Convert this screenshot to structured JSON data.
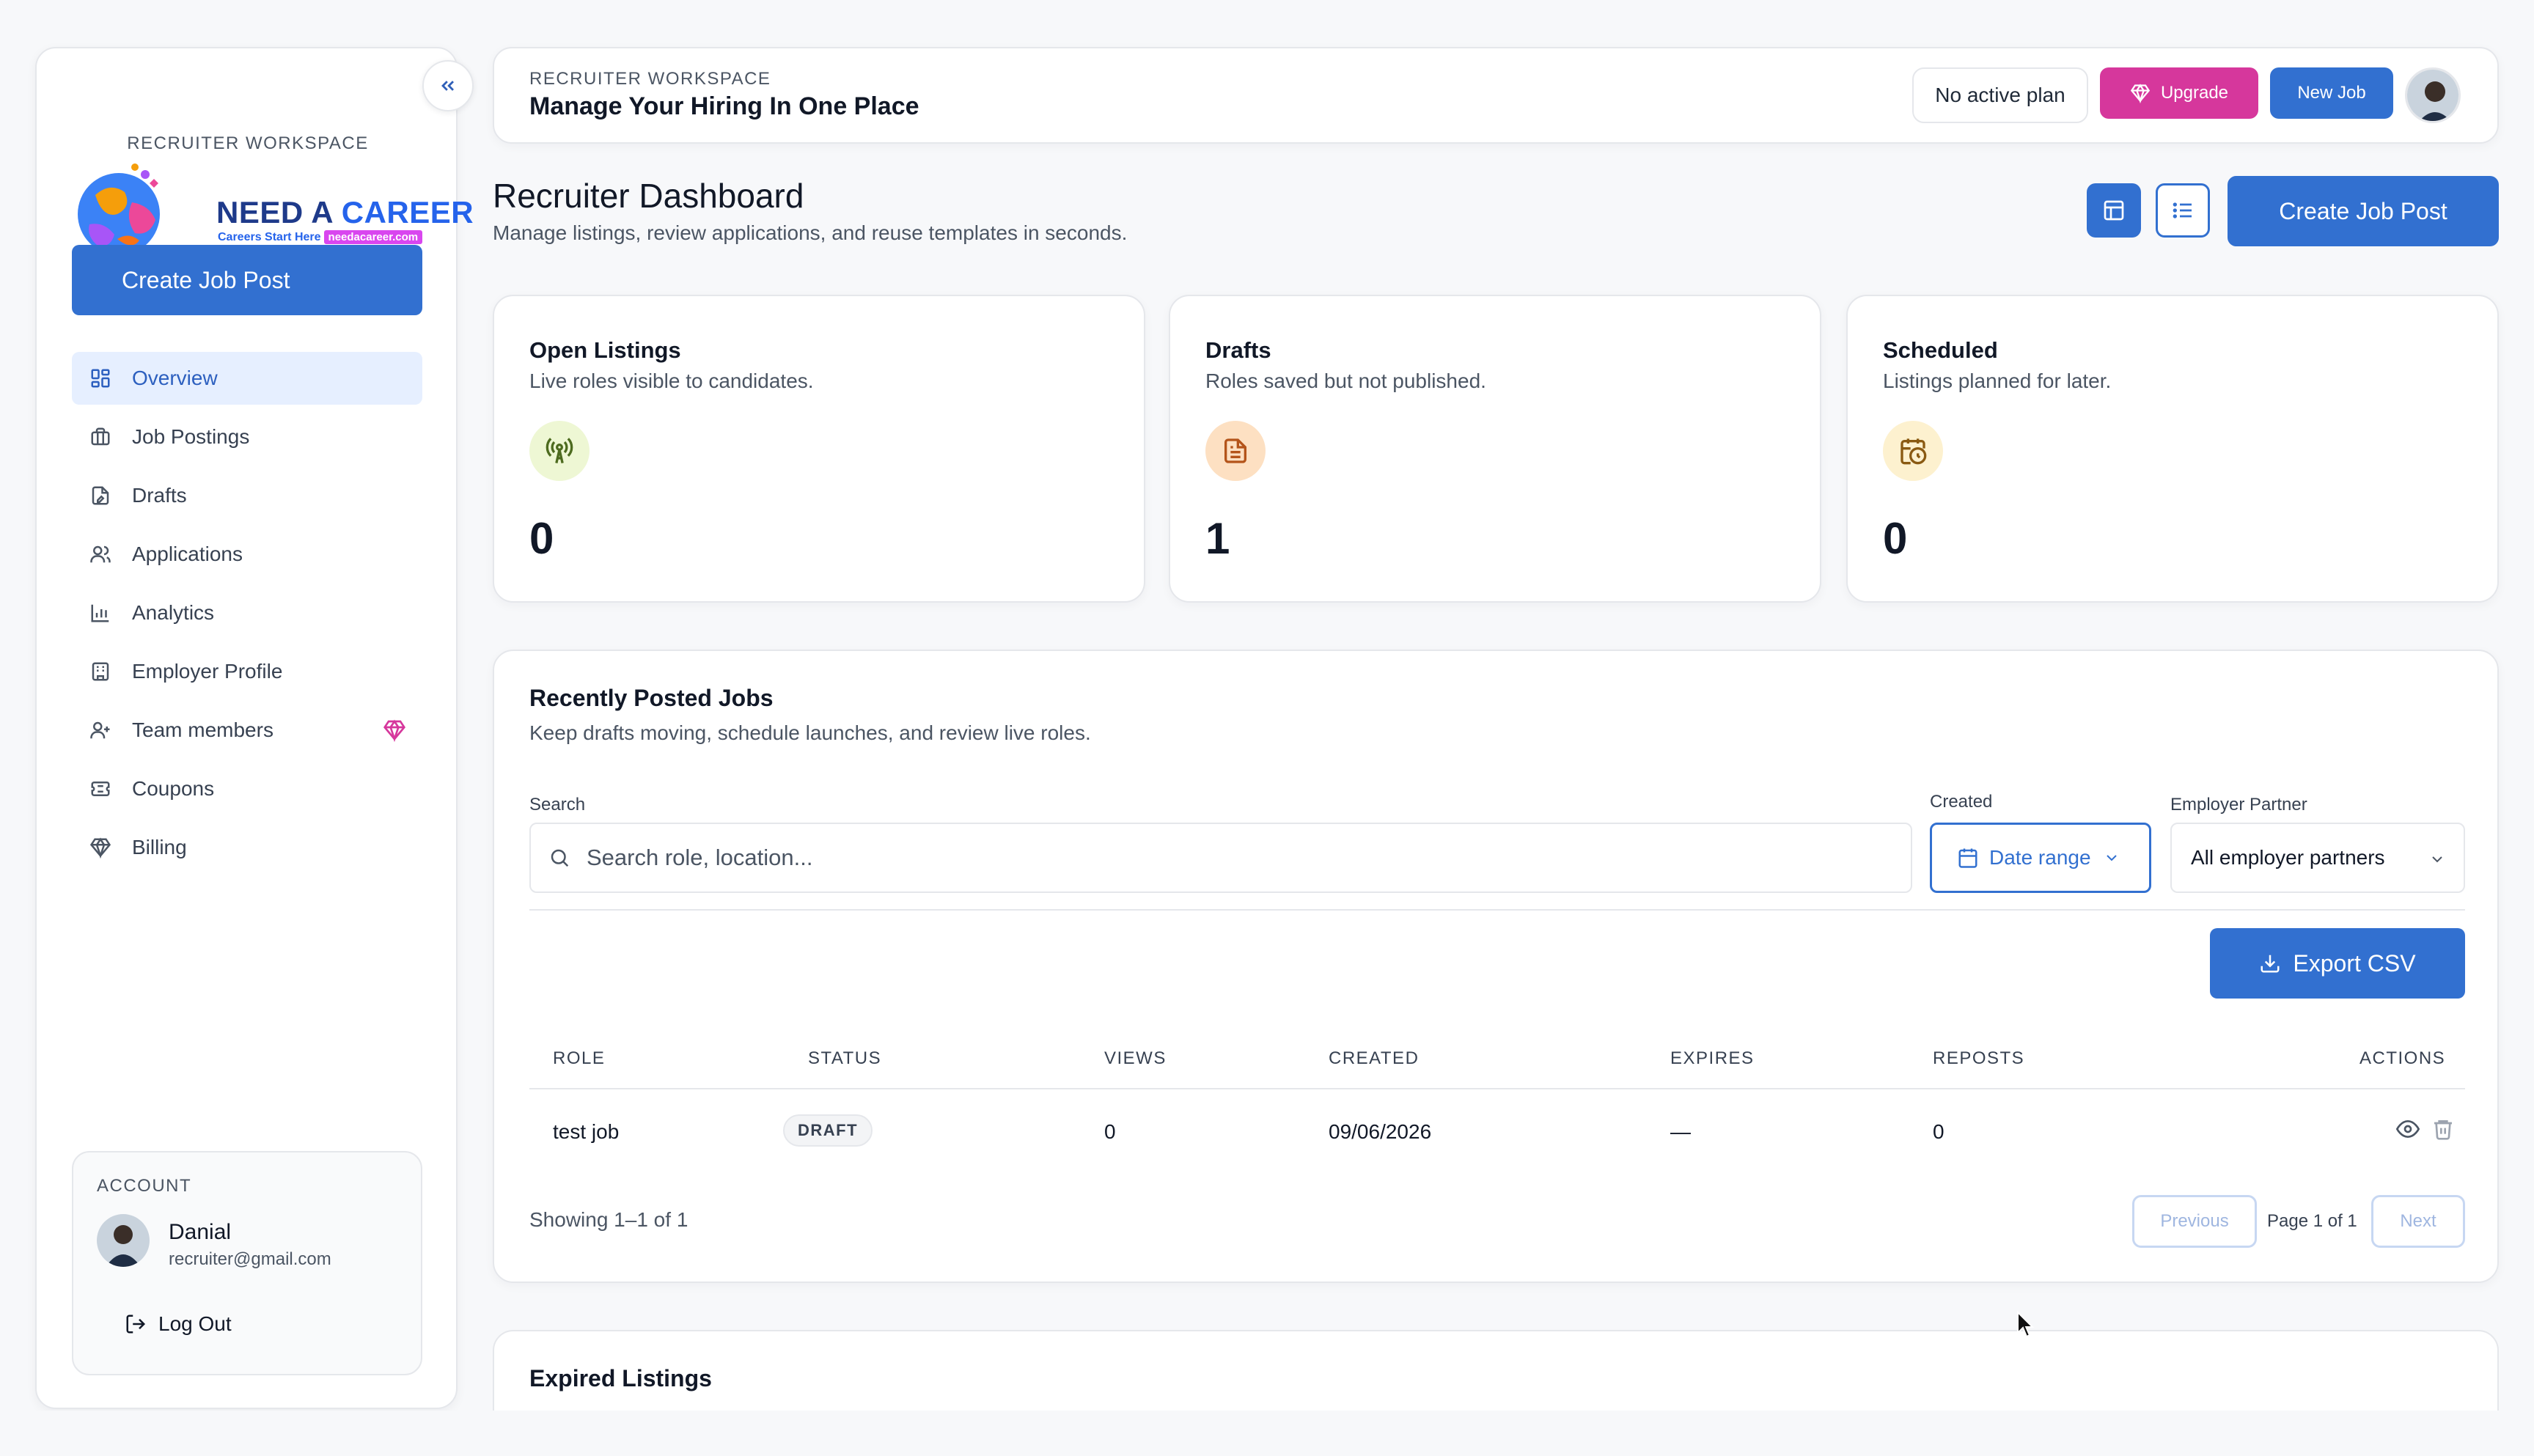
{
  "sidebar": {
    "workspace_label": "RECRUITER WORKSPACE",
    "logo": {
      "title_a": "NEED A ",
      "title_b": "CAREER",
      "tagline": "Careers Start Here",
      "url": "needacareer.com"
    },
    "create_label": "Create Job Post",
    "items": [
      {
        "label": "Overview",
        "icon": "grid-icon",
        "active": true
      },
      {
        "label": "Job Postings",
        "icon": "briefcase-icon"
      },
      {
        "label": "Drafts",
        "icon": "draft-file-icon"
      },
      {
        "label": "Applications",
        "icon": "users-icon"
      },
      {
        "label": "Analytics",
        "icon": "bar-chart-icon"
      },
      {
        "label": "Employer Profile",
        "icon": "building-icon"
      },
      {
        "label": "Team members",
        "icon": "user-plus-icon",
        "badge": "diamond-icon"
      },
      {
        "label": "Coupons",
        "icon": "ticket-icon"
      },
      {
        "label": "Billing",
        "icon": "gem-icon"
      }
    ],
    "account": {
      "label": "ACCOUNT",
      "name": "Danial",
      "email": "recruiter@gmail.com",
      "logout_label": "Log Out"
    }
  },
  "topbar": {
    "kicker": "RECRUITER WORKSPACE",
    "title": "Manage Your Hiring In One Place",
    "plan_label": "No active plan",
    "upgrade_label": "Upgrade",
    "new_job_label": "New Job"
  },
  "dashboard": {
    "title": "Recruiter Dashboard",
    "subtitle": "Manage listings, review applications, and reuse templates in seconds.",
    "create_label": "Create Job Post"
  },
  "stats": [
    {
      "title": "Open Listings",
      "subtitle": "Live roles visible to candidates.",
      "value": "0",
      "icon": "broadcast-icon",
      "color": "#4d6b1f",
      "bg": "#eef7d4"
    },
    {
      "title": "Drafts",
      "subtitle": "Roles saved but not published.",
      "value": "1",
      "icon": "document-icon",
      "color": "#b4541a",
      "bg": "#fde0c2"
    },
    {
      "title": "Scheduled",
      "subtitle": "Listings planned for later.",
      "value": "0",
      "icon": "calendar-clock-icon",
      "color": "#8a5a12",
      "bg": "#fdf1cf"
    }
  ],
  "jobs": {
    "title": "Recently Posted Jobs",
    "subtitle": "Keep drafts moving, schedule launches, and review live roles.",
    "search_label": "Search",
    "search_placeholder": "Search role, location...",
    "created_label": "Created",
    "date_range_label": "Date range",
    "partner_label": "Employer Partner",
    "partner_value": "All employer partners",
    "export_label": "Export CSV",
    "columns": [
      "ROLE",
      "STATUS",
      "VIEWS",
      "CREATED",
      "EXPIRES",
      "REPOSTS",
      "ACTIONS"
    ],
    "rows": [
      {
        "role": "test job",
        "status": "DRAFT",
        "views": "0",
        "created": "09/06/2026",
        "expires": "—",
        "reposts": "0"
      }
    ],
    "showing": "Showing 1–1 of 1",
    "prev_label": "Previous",
    "page_label": "Page 1 of 1",
    "next_label": "Next"
  },
  "expired": {
    "title": "Expired Listings"
  },
  "colors": {
    "primary": "#3270d0",
    "upgrade": "#d6379c",
    "active_bg": "#e6efff"
  }
}
